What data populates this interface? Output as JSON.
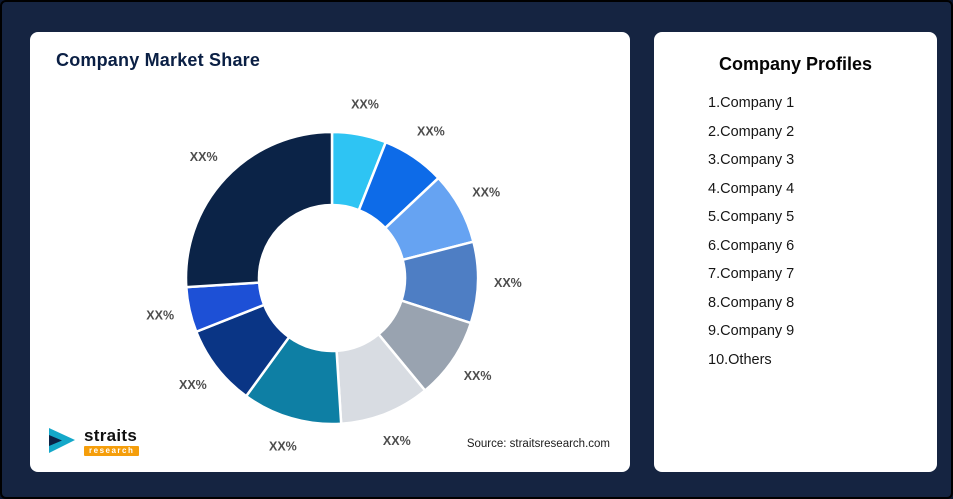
{
  "page": {
    "background": "#152441"
  },
  "left_card": {
    "title": "Company Market Share",
    "source": "Source: straitsresearch.com",
    "logo": {
      "brand": "straits",
      "tagline": "research"
    }
  },
  "right_card": {
    "title": "Company Profiles",
    "items": [
      "1.Company 1",
      "2.Company 2",
      "3.Company 3",
      "4.Company 4",
      "5.Company 5",
      "6.Company 6",
      "7.Company 7",
      "8.Company 8",
      "9.Company 9",
      "10.Others"
    ]
  },
  "chart_data": {
    "type": "pie",
    "subtype": "donut",
    "title": "Company Market Share",
    "unit": "%",
    "direction": "clockwise",
    "start_angle_deg": 0,
    "inner_radius_ratio": 0.5,
    "legend_position": "none",
    "note": "All slice data labels are masked as XX% in the source image; value_pct_est is estimated from arc angles",
    "segments": [
      {
        "name": "Company 1",
        "label": "XX%",
        "value_pct_est": 6,
        "color": "#2ec4f3"
      },
      {
        "name": "Company 2",
        "label": "XX%",
        "value_pct_est": 7,
        "color": "#0d6be8"
      },
      {
        "name": "Company 3",
        "label": "XX%",
        "value_pct_est": 8,
        "color": "#66a3f2"
      },
      {
        "name": "Company 4",
        "label": "XX%",
        "value_pct_est": 9,
        "color": "#4e7ec4"
      },
      {
        "name": "Company 5",
        "label": "XX%",
        "value_pct_est": 9,
        "color": "#99a3b0"
      },
      {
        "name": "Company 6",
        "label": "XX%",
        "value_pct_est": 10,
        "color": "#d8dce2"
      },
      {
        "name": "Company 7",
        "label": "XX%",
        "value_pct_est": 11,
        "color": "#0e7fa4"
      },
      {
        "name": "Company 8",
        "label": "XX%",
        "value_pct_est": 9,
        "color": "#0a3585"
      },
      {
        "name": "Company 9",
        "label": "XX%",
        "value_pct_est": 5,
        "color": "#1d50d6"
      },
      {
        "name": "Others",
        "label": "XX%",
        "value_pct_est": 26,
        "color": "#0b2347"
      }
    ],
    "label_color": "#4d4d4d"
  }
}
